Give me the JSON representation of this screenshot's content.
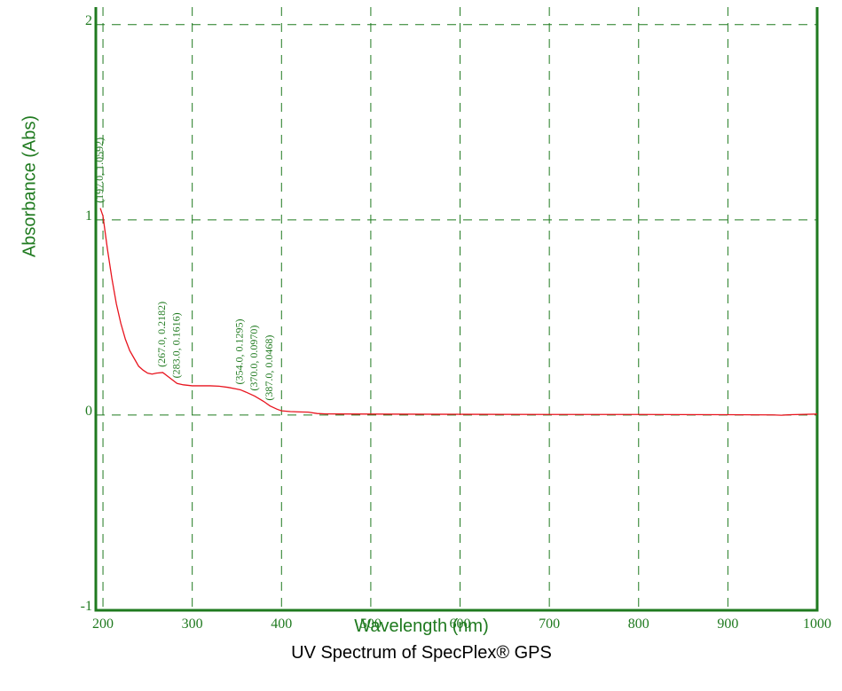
{
  "chart_data": {
    "type": "line",
    "title": "UV Spectrum of SpecPlex® GPS",
    "x_label": "Wavelength (nm)",
    "y_label": "Absorbance (Abs)",
    "x": [
      197,
      200,
      205,
      210,
      215,
      220,
      225,
      230,
      235,
      240,
      245,
      250,
      255,
      260,
      267,
      275,
      283,
      290,
      300,
      310,
      320,
      330,
      340,
      350,
      354,
      360,
      370,
      380,
      387,
      395,
      400,
      410,
      420,
      430,
      440,
      450,
      500,
      600,
      700,
      800,
      900,
      950,
      960,
      970,
      1000
    ],
    "values": [
      1.06,
      1.02,
      0.85,
      0.7,
      0.57,
      0.47,
      0.39,
      0.33,
      0.29,
      0.25,
      0.23,
      0.215,
      0.21,
      0.215,
      0.218,
      0.19,
      0.162,
      0.155,
      0.15,
      0.15,
      0.15,
      0.148,
      0.142,
      0.133,
      0.1295,
      0.118,
      0.097,
      0.07,
      0.047,
      0.03,
      0.022,
      0.018,
      0.016,
      0.015,
      0.008,
      0.006,
      0.005,
      0.004,
      0.003,
      0.003,
      0.002,
      0.001,
      -0.001,
      0.002,
      0.005
    ],
    "color": "#e8141e",
    "xlim": [
      192,
      1000
    ],
    "ylim": [
      -1,
      2.09
    ],
    "xticks": [
      200,
      300,
      400,
      500,
      600,
      700,
      800,
      900,
      1000
    ],
    "yticks": [
      -1,
      0,
      1,
      2
    ],
    "grid": true,
    "annotations": [
      {
        "label": "(197.0, 1.0592)",
        "x": 197,
        "y": 1.0592
      },
      {
        "label": "(267.0, 0.2182)",
        "x": 267,
        "y": 0.2182
      },
      {
        "label": "(283.0, 0.1616)",
        "x": 283,
        "y": 0.1616
      },
      {
        "label": "(354.0, 0.1295)",
        "x": 354,
        "y": 0.1295
      },
      {
        "label": "(370.0, 0.0970)",
        "x": 370,
        "y": 0.097
      },
      {
        "label": "(387.0, 0.0468)",
        "x": 387,
        "y": 0.0468
      }
    ]
  }
}
